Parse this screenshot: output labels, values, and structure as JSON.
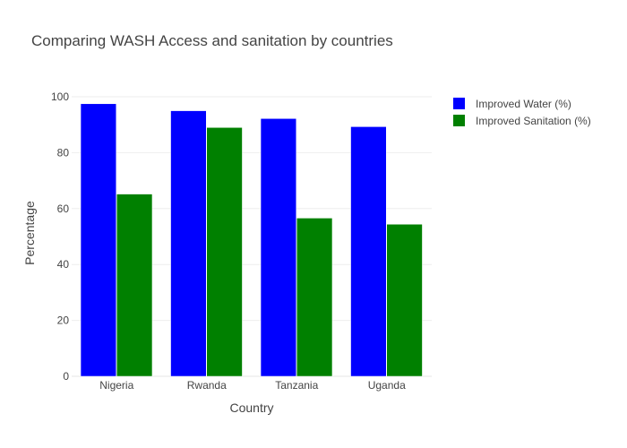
{
  "chart_data": {
    "type": "bar",
    "title": "Comparing WASH Access and sanitation by countries",
    "xlabel": "Country",
    "ylabel": "Percentage",
    "categories": [
      "Nigeria",
      "Rwanda",
      "Tanzania",
      "Uganda"
    ],
    "series": [
      {
        "name": "Improved Water (%)",
        "values": [
          97.5,
          95.0,
          92.2,
          89.3
        ],
        "color": "#0000ff"
      },
      {
        "name": "Improved Sanitation (%)",
        "values": [
          65.2,
          89.0,
          56.6,
          54.4
        ],
        "color": "#008000"
      }
    ],
    "ylim": [
      0,
      100
    ],
    "yticks": [
      0,
      20,
      40,
      60,
      80,
      100
    ],
    "grid": true,
    "legend": "top-right"
  }
}
